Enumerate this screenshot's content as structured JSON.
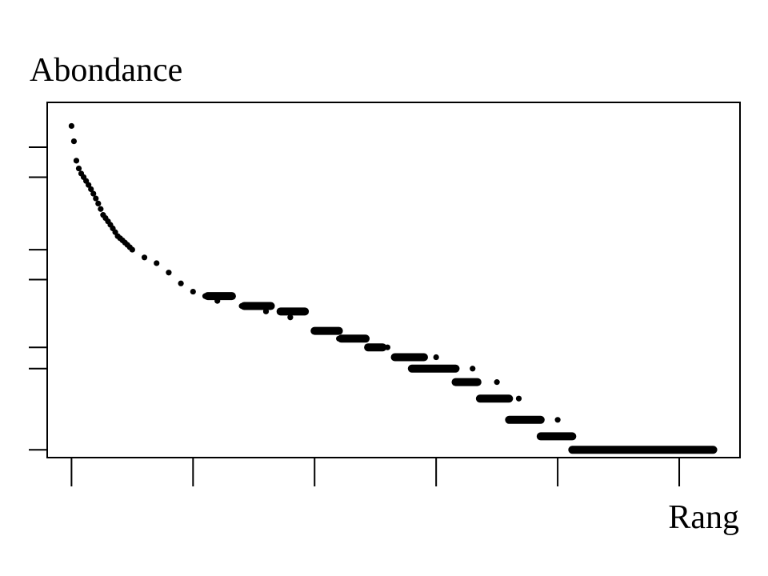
{
  "chart_data": {
    "type": "scatter",
    "title": "",
    "xlabel": "Rang",
    "ylabel": "Abondance",
    "x_ticks": [
      0,
      50,
      100,
      150,
      200,
      250
    ],
    "y_ticks": [
      1,
      3,
      4,
      10,
      15,
      40,
      60
    ],
    "y_scale": "log",
    "xlim": [
      -10,
      275
    ],
    "ylim": [
      0.9,
      110
    ],
    "grid": false,
    "legend": "none",
    "point_color": "#000000",
    "series": [
      {
        "x": [
          0,
          1,
          2,
          3,
          4,
          5,
          6,
          7,
          8,
          9,
          10,
          11,
          12,
          13,
          14,
          15,
          16,
          17,
          18,
          19,
          20,
          21,
          22,
          23,
          24,
          25,
          30,
          35,
          40,
          45,
          50,
          55,
          60,
          70,
          80,
          90,
          100,
          110,
          130,
          150,
          165,
          175,
          184,
          200,
          210
        ],
        "y": [
          80,
          65,
          50,
          45,
          42,
          40,
          38,
          36,
          34,
          32,
          30,
          28,
          26,
          24,
          23,
          22,
          21,
          20,
          19,
          18,
          17.5,
          17,
          16.5,
          16,
          15.5,
          15,
          13.5,
          12.5,
          11,
          9.5,
          8.5,
          8,
          7.5,
          7,
          6.5,
          6,
          5,
          4.5,
          4,
          3.5,
          3,
          2.5,
          2,
          1.5,
          1
        ],
        "step_runs": [
          {
            "y": 8,
            "x_from": 56,
            "x_to": 66
          },
          {
            "y": 7,
            "x_from": 71,
            "x_to": 82
          },
          {
            "y": 6.5,
            "x_from": 86,
            "x_to": 96
          },
          {
            "y": 5,
            "x_from": 100,
            "x_to": 110
          },
          {
            "y": 4.5,
            "x_from": 111,
            "x_to": 121
          },
          {
            "y": 4,
            "x_from": 122,
            "x_to": 128
          },
          {
            "y": 3.5,
            "x_from": 133,
            "x_to": 145
          },
          {
            "y": 3,
            "x_from": 140,
            "x_to": 158
          },
          {
            "y": 2.5,
            "x_from": 158,
            "x_to": 167
          },
          {
            "y": 2,
            "x_from": 168,
            "x_to": 180
          },
          {
            "y": 1.5,
            "x_from": 180,
            "x_to": 193
          },
          {
            "y": 1.2,
            "x_from": 193,
            "x_to": 206
          },
          {
            "y": 1,
            "x_from": 206,
            "x_to": 264
          }
        ]
      }
    ]
  }
}
